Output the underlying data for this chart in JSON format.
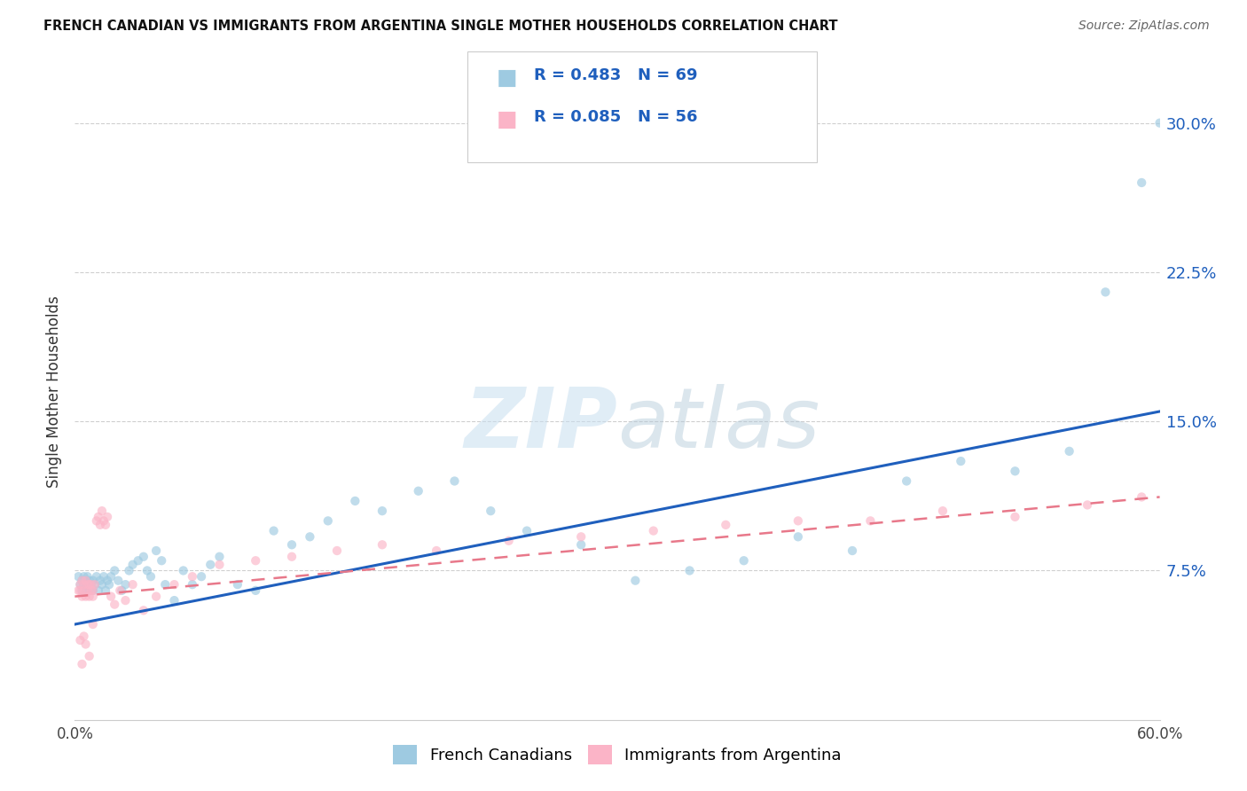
{
  "title": "FRENCH CANADIAN VS IMMIGRANTS FROM ARGENTINA SINGLE MOTHER HOUSEHOLDS CORRELATION CHART",
  "source": "Source: ZipAtlas.com",
  "ylabel": "Single Mother Households",
  "yticks": [
    "7.5%",
    "15.0%",
    "22.5%",
    "30.0%"
  ],
  "ytick_vals": [
    0.075,
    0.15,
    0.225,
    0.3
  ],
  "xlim": [
    0.0,
    0.6
  ],
  "ylim": [
    0.0,
    0.33
  ],
  "legend_blue_label": "R = 0.483   N = 69",
  "legend_pink_label": "R = 0.085   N = 56",
  "blue_scatter_x": [
    0.002,
    0.003,
    0.004,
    0.004,
    0.005,
    0.005,
    0.006,
    0.006,
    0.007,
    0.007,
    0.008,
    0.008,
    0.009,
    0.01,
    0.01,
    0.011,
    0.012,
    0.013,
    0.014,
    0.015,
    0.016,
    0.017,
    0.018,
    0.019,
    0.02,
    0.022,
    0.024,
    0.026,
    0.028,
    0.03,
    0.032,
    0.035,
    0.038,
    0.04,
    0.042,
    0.045,
    0.048,
    0.05,
    0.055,
    0.06,
    0.065,
    0.07,
    0.075,
    0.08,
    0.09,
    0.1,
    0.11,
    0.12,
    0.13,
    0.14,
    0.155,
    0.17,
    0.19,
    0.21,
    0.23,
    0.25,
    0.28,
    0.31,
    0.34,
    0.37,
    0.4,
    0.43,
    0.46,
    0.49,
    0.52,
    0.55,
    0.57,
    0.59,
    0.6
  ],
  "blue_scatter_y": [
    0.072,
    0.068,
    0.07,
    0.065,
    0.068,
    0.072,
    0.065,
    0.07,
    0.068,
    0.072,
    0.07,
    0.065,
    0.068,
    0.07,
    0.065,
    0.068,
    0.072,
    0.065,
    0.07,
    0.068,
    0.072,
    0.065,
    0.07,
    0.068,
    0.072,
    0.075,
    0.07,
    0.065,
    0.068,
    0.075,
    0.078,
    0.08,
    0.082,
    0.075,
    0.072,
    0.085,
    0.08,
    0.068,
    0.06,
    0.075,
    0.068,
    0.072,
    0.078,
    0.082,
    0.068,
    0.065,
    0.095,
    0.088,
    0.092,
    0.1,
    0.11,
    0.105,
    0.115,
    0.12,
    0.105,
    0.095,
    0.088,
    0.07,
    0.075,
    0.08,
    0.092,
    0.085,
    0.12,
    0.13,
    0.125,
    0.135,
    0.215,
    0.27,
    0.3
  ],
  "pink_scatter_x": [
    0.002,
    0.003,
    0.003,
    0.004,
    0.004,
    0.005,
    0.005,
    0.006,
    0.006,
    0.007,
    0.007,
    0.008,
    0.008,
    0.009,
    0.009,
    0.01,
    0.01,
    0.011,
    0.012,
    0.013,
    0.014,
    0.015,
    0.016,
    0.017,
    0.018,
    0.02,
    0.022,
    0.025,
    0.028,
    0.032,
    0.038,
    0.045,
    0.055,
    0.065,
    0.08,
    0.1,
    0.12,
    0.145,
    0.17,
    0.2,
    0.24,
    0.28,
    0.32,
    0.36,
    0.4,
    0.44,
    0.48,
    0.52,
    0.56,
    0.59,
    0.003,
    0.004,
    0.005,
    0.006,
    0.008,
    0.01
  ],
  "pink_scatter_y": [
    0.065,
    0.068,
    0.065,
    0.07,
    0.062,
    0.068,
    0.065,
    0.07,
    0.062,
    0.068,
    0.065,
    0.062,
    0.068,
    0.065,
    0.068,
    0.065,
    0.062,
    0.068,
    0.1,
    0.102,
    0.098,
    0.105,
    0.1,
    0.098,
    0.102,
    0.062,
    0.058,
    0.065,
    0.06,
    0.068,
    0.055,
    0.062,
    0.068,
    0.072,
    0.078,
    0.08,
    0.082,
    0.085,
    0.088,
    0.085,
    0.09,
    0.092,
    0.095,
    0.098,
    0.1,
    0.1,
    0.105,
    0.102,
    0.108,
    0.112,
    0.04,
    0.028,
    0.042,
    0.038,
    0.032,
    0.048
  ],
  "blue_line_x": [
    0.0,
    0.6
  ],
  "blue_line_y": [
    0.048,
    0.155
  ],
  "pink_line_x": [
    0.0,
    0.6
  ],
  "pink_line_y": [
    0.062,
    0.112
  ],
  "blue_color": "#9ecae1",
  "pink_color": "#fbb4c7",
  "blue_line_color": "#1f5fbd",
  "pink_line_color": "#e8788a",
  "watermark_zip": "ZIP",
  "watermark_atlas": "atlas",
  "bottom_legend_blue": "French Canadians",
  "bottom_legend_pink": "Immigrants from Argentina",
  "scatter_size": 55,
  "scatter_alpha": 0.65,
  "grid_color": "#bbbbbb"
}
